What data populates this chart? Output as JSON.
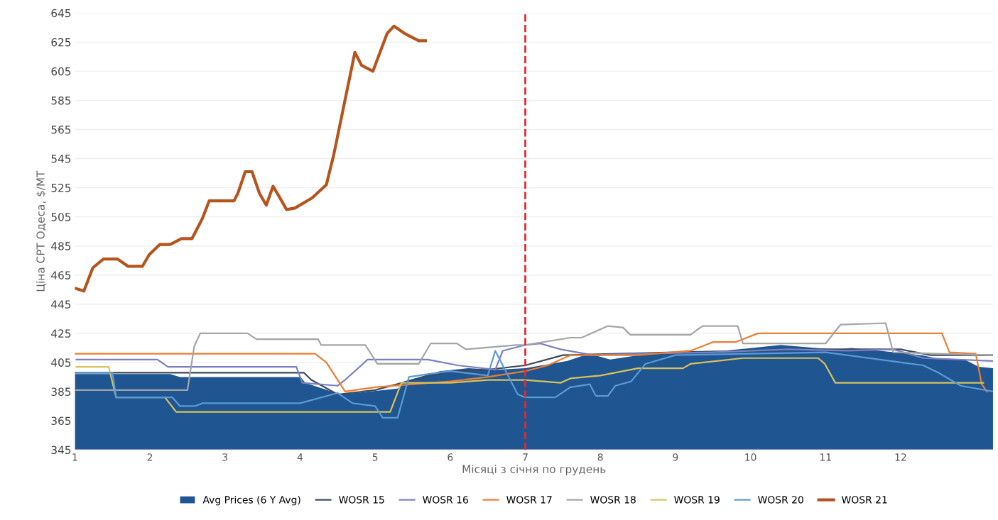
{
  "chart_data": {
    "type": "line",
    "xlabel": "Місяці з січня по грудень",
    "ylabel": "Ціна CPT Одеса, $/MT",
    "xlim": [
      1,
      13.23
    ],
    "xticks": [
      1,
      2,
      3,
      4,
      5,
      6,
      7,
      8,
      9,
      10,
      11,
      12
    ],
    "ylim": [
      345,
      645
    ],
    "yticks": [
      345,
      365,
      385,
      405,
      425,
      445,
      465,
      485,
      505,
      525,
      545,
      565,
      585,
      605,
      625,
      645
    ],
    "grid": "y",
    "legend": "bottom",
    "line_style": "solid",
    "marker": "none",
    "ref_lines": [
      {
        "axis": "x",
        "value": 7,
        "label": null,
        "color": "#e8282b",
        "line_style": "dashed"
      }
    ],
    "series": [
      {
        "name": "Avg Prices (6 Y Avg)",
        "type": "area",
        "color": "#1f5591",
        "x": [
          1.0,
          2.27,
          2.4,
          4.01,
          4.07,
          4.54,
          5.3,
          5.39,
          5.86,
          6.24,
          6.62,
          7.0,
          7.56,
          7.85,
          8.13,
          8.51,
          8.98,
          9.45,
          10.02,
          10.4,
          10.87,
          11.15,
          11.34,
          11.91,
          12.28,
          12.47,
          12.85,
          13.04,
          13.23
        ],
        "values": [
          397,
          397,
          395,
          395,
          391,
          383,
          387,
          392,
          399,
          401,
          400,
          401,
          406,
          411,
          407,
          410,
          412,
          412,
          415,
          417,
          415,
          414,
          415,
          412,
          410,
          408,
          407,
          402,
          401
        ]
      },
      {
        "name": "WOSR 15",
        "color": "#3c4a5e",
        "x": [
          1.0,
          4.05,
          4.15,
          4.5,
          5.0,
          5.5,
          6.0,
          6.5,
          7.0,
          7.5,
          9.0,
          11.0,
          12.0,
          12.4,
          13.23
        ],
        "values": [
          398,
          398,
          393,
          383,
          386,
          393,
          399,
          400,
          403,
          410,
          412,
          414,
          414,
          410,
          410
        ]
      },
      {
        "name": "WOSR 16",
        "color": "#7b7fc4",
        "x": [
          1.02,
          2.1,
          2.24,
          3.95,
          4.03,
          4.5,
          4.6,
          4.9,
          5.7,
          6.1,
          6.6,
          6.7,
          7.0,
          7.2,
          7.47,
          7.9,
          8.5,
          9.5,
          10.5,
          11.3,
          11.9,
          12.3,
          13.23
        ],
        "values": [
          407,
          407,
          402,
          402,
          391,
          389,
          393,
          407,
          407,
          403,
          400,
          413,
          417,
          418,
          414,
          410,
          411,
          412,
          414,
          413,
          414,
          408,
          406
        ]
      },
      {
        "name": "WOSR 17",
        "color": "#ed7d31",
        "x": [
          1.0,
          4.2,
          4.35,
          4.6,
          5.0,
          5.5,
          6.0,
          6.5,
          7.0,
          7.3,
          7.6,
          8.5,
          9.2,
          9.5,
          9.8,
          10.1,
          12.55,
          12.65,
          13.0,
          13.08,
          13.15
        ],
        "values": [
          411,
          411,
          405,
          385,
          388,
          390,
          392,
          395,
          399,
          403,
          410,
          410,
          413,
          419,
          419,
          425,
          425,
          412,
          411,
          390,
          385
        ]
      },
      {
        "name": "WOSR 18",
        "color": "#a5a5a5",
        "x": [
          1.02,
          2.5,
          2.59,
          2.67,
          3.3,
          3.42,
          4.24,
          4.28,
          4.87,
          5.03,
          5.58,
          5.74,
          6.09,
          6.21,
          6.88,
          7.0,
          7.6,
          7.75,
          8.1,
          8.3,
          8.4,
          9.2,
          9.36,
          9.83,
          9.9,
          11.0,
          11.2,
          11.8,
          11.9,
          12.5,
          13.23
        ],
        "values": [
          386,
          386,
          416,
          425,
          425,
          421,
          421,
          417,
          417,
          404,
          404,
          418,
          418,
          414,
          417,
          417,
          422,
          422,
          430,
          429,
          424,
          424,
          430,
          430,
          418,
          418,
          431,
          432,
          412,
          411,
          410
        ]
      },
      {
        "name": "WOSR 19",
        "color": "#d9c25a",
        "x": [
          1.02,
          1.45,
          1.55,
          2.2,
          2.35,
          5.2,
          5.35,
          6.0,
          6.5,
          7.0,
          7.47,
          7.6,
          8.0,
          8.5,
          8.7,
          9.1,
          9.2,
          9.9,
          10.4,
          10.9,
          10.99,
          11.13,
          13.1
        ],
        "values": [
          402,
          402,
          381,
          381,
          371,
          371,
          391,
          391,
          393,
          393,
          391,
          394,
          396,
          401,
          401,
          401,
          404,
          408,
          408,
          408,
          404,
          391,
          391
        ]
      },
      {
        "name": "WOSR 20",
        "color": "#5b9bd5",
        "x": [
          1.02,
          1.5,
          1.55,
          2.3,
          2.4,
          2.6,
          2.7,
          4.0,
          4.5,
          4.7,
          5.0,
          5.1,
          5.3,
          5.45,
          5.7,
          6.0,
          6.5,
          6.6,
          6.9,
          7.0,
          7.4,
          7.6,
          7.86,
          7.94,
          8.1,
          8.2,
          8.41,
          8.6,
          9.0,
          10.0,
          11.0,
          12.3,
          12.5,
          12.8,
          13.23
        ],
        "values": [
          398,
          398,
          381,
          381,
          375,
          375,
          377,
          377,
          384,
          377,
          375,
          367,
          367,
          395,
          397,
          399,
          396,
          413,
          383,
          381,
          381,
          388,
          390,
          382,
          382,
          389,
          392,
          404,
          410,
          411,
          412,
          403,
          398,
          389,
          385
        ]
      },
      {
        "name": "WOSR 21",
        "color": "#b5541c",
        "x": [
          1.0,
          1.12,
          1.24,
          1.38,
          1.57,
          1.71,
          1.9,
          1.99,
          2.13,
          2.27,
          2.42,
          2.56,
          2.7,
          2.79,
          2.94,
          3.12,
          3.17,
          3.27,
          3.36,
          3.46,
          3.55,
          3.64,
          3.72,
          3.82,
          3.93,
          4.16,
          4.35,
          4.45,
          4.73,
          4.82,
          4.97,
          5.16,
          5.25,
          5.39,
          5.58,
          5.67
        ],
        "values": [
          456,
          454,
          470,
          476,
          476,
          471,
          471,
          479,
          486,
          486,
          490,
          490,
          504,
          516,
          516,
          516,
          521,
          536,
          536,
          521,
          513,
          526,
          519,
          510,
          511,
          518,
          527,
          548,
          618,
          609,
          605,
          631,
          636,
          631,
          626,
          626
        ]
      }
    ]
  }
}
